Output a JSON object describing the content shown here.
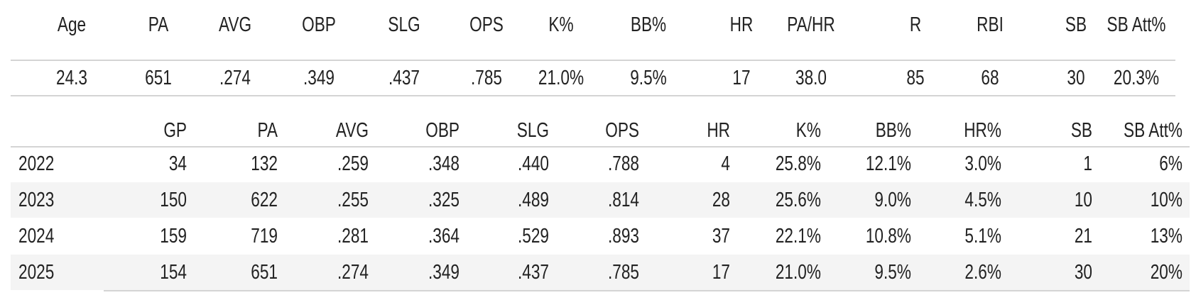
{
  "top": {
    "headers": [
      "Age",
      "PA",
      "AVG",
      "OBP",
      "SLG",
      "OPS",
      "K%",
      "BB%",
      "HR",
      "PA/HR",
      "R",
      "RBI",
      "SB",
      "SB Att%"
    ],
    "row": [
      "24.3",
      "651",
      ".274",
      ".349",
      ".437",
      ".785",
      "21.0%",
      "9.5%",
      "17",
      "38.0",
      "85",
      "68",
      "30",
      "20.3%"
    ]
  },
  "bottom": {
    "headers": [
      "GP",
      "PA",
      "AVG",
      "OBP",
      "SLG",
      "OPS",
      "HR",
      "K%",
      "BB%",
      "HR%",
      "SB",
      "SB Att%"
    ],
    "rows": [
      [
        "2022",
        "34",
        "132",
        ".259",
        ".348",
        ".440",
        ".788",
        "4",
        "25.8%",
        "12.1%",
        "3.0%",
        "1",
        "6%"
      ],
      [
        "2023",
        "150",
        "622",
        ".255",
        ".325",
        ".489",
        ".814",
        "28",
        "25.6%",
        "9.0%",
        "4.5%",
        "10",
        "10%"
      ],
      [
        "2024",
        "159",
        "719",
        ".281",
        ".364",
        ".529",
        ".893",
        "37",
        "22.1%",
        "10.8%",
        "5.1%",
        "21",
        "13%"
      ],
      [
        "2025",
        "154",
        "651",
        ".274",
        ".349",
        ".437",
        ".785",
        "17",
        "21.0%",
        "9.5%",
        "2.6%",
        "30",
        "20%"
      ]
    ]
  }
}
